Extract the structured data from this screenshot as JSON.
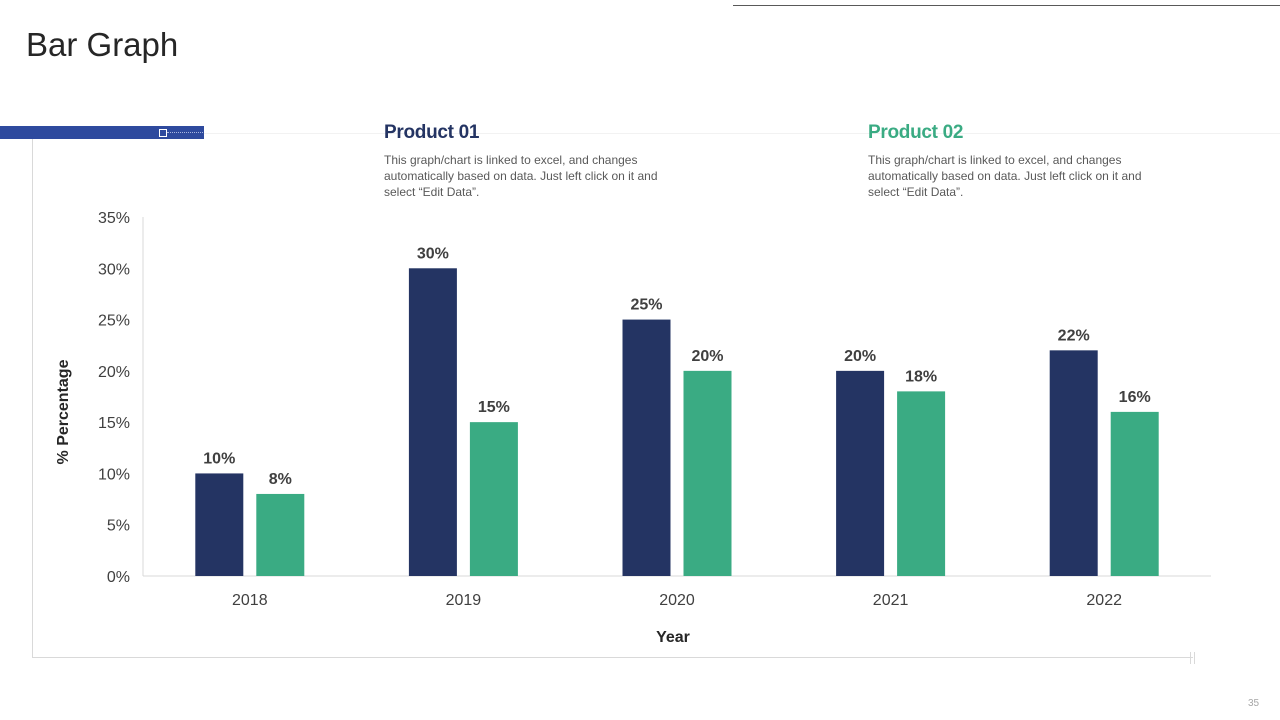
{
  "page": {
    "title": "Bar Graph",
    "page_number": "35"
  },
  "legend": [
    {
      "title": "Product 01",
      "description": "This graph/chart is linked to excel, and changes automatically based on data. Just left click on it and select “Edit Data”.",
      "color": "#243463"
    },
    {
      "title": "Product 02",
      "description": "This graph/chart is linked to excel, and changes automatically based on data. Just left click on it and select “Edit Data”.",
      "color": "#3aab83"
    }
  ],
  "colors": {
    "accent": "#2e4a9e",
    "axis": "#d9d9d9",
    "label": "#404040"
  },
  "chart_data": {
    "type": "bar",
    "title": "",
    "xlabel": "Year",
    "ylabel": "% Percentage",
    "categories": [
      "2018",
      "2019",
      "2020",
      "2021",
      "2022"
    ],
    "series": [
      {
        "name": "Product 01",
        "values": [
          10,
          30,
          25,
          20,
          22
        ],
        "color": "#243463"
      },
      {
        "name": "Product 02",
        "values": [
          8,
          15,
          20,
          18,
          16
        ],
        "color": "#3aab83"
      }
    ],
    "ylim": [
      0,
      35
    ],
    "yticks": [
      0,
      5,
      10,
      15,
      20,
      25,
      30,
      35
    ],
    "tick_suffix": "%",
    "value_suffix": "%",
    "grid": false,
    "legend_position": "top"
  }
}
